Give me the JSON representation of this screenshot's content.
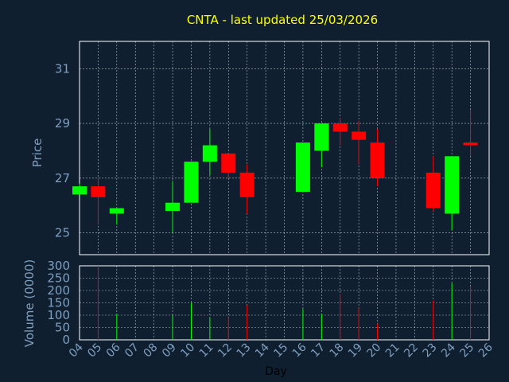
{
  "title": "CNTA - last updated 25/03/2026",
  "colors": {
    "background": "#0f1f30",
    "up": "#00ff00",
    "down": "#ff0000",
    "axis_text": "#7f9fbf",
    "grid": "#ffffff",
    "title": "#ffff00"
  },
  "chart_data": [
    {
      "type": "candlestick",
      "ylabel": "Price",
      "ylim": [
        24.2,
        32.0
      ],
      "yticks": [
        25,
        27,
        29,
        31
      ],
      "grid": true,
      "candles": [
        {
          "day": "04",
          "open": 26.4,
          "close": 26.7,
          "high": 26.8,
          "low": 26.4
        },
        {
          "day": "05",
          "open": 26.7,
          "close": 26.3,
          "high": 27.0,
          "low": 25.3
        },
        {
          "day": "06",
          "open": 25.7,
          "close": 25.9,
          "high": 25.9,
          "low": 25.3
        },
        {
          "day": "09",
          "open": 25.8,
          "close": 26.1,
          "high": 26.9,
          "low": 25.0
        },
        {
          "day": "10",
          "open": 26.1,
          "close": 27.6,
          "high": 27.6,
          "low": 26.1
        },
        {
          "day": "11",
          "open": 27.6,
          "close": 28.2,
          "high": 28.8,
          "low": 27.1
        },
        {
          "day": "12",
          "open": 27.9,
          "close": 27.2,
          "high": 27.9,
          "low": 27.0
        },
        {
          "day": "13",
          "open": 27.2,
          "close": 26.3,
          "high": 27.5,
          "low": 25.7
        },
        {
          "day": "16",
          "open": 26.5,
          "close": 28.3,
          "high": 28.3,
          "low": 26.5
        },
        {
          "day": "17",
          "open": 28.0,
          "close": 29.0,
          "high": 29.0,
          "low": 27.4
        },
        {
          "day": "18",
          "open": 29.0,
          "close": 28.7,
          "high": 29.2,
          "low": 28.2
        },
        {
          "day": "19",
          "open": 28.7,
          "close": 28.4,
          "high": 29.1,
          "low": 27.5
        },
        {
          "day": "20",
          "open": 28.3,
          "close": 27.0,
          "high": 28.8,
          "low": 26.7
        },
        {
          "day": "23",
          "open": 27.2,
          "close": 25.9,
          "high": 27.8,
          "low": 25.8
        },
        {
          "day": "24",
          "open": 25.7,
          "close": 27.8,
          "high": 27.8,
          "low": 25.1
        },
        {
          "day": "25",
          "open": 28.3,
          "close": 28.2,
          "high": 29.5,
          "low": 27.8
        }
      ]
    },
    {
      "type": "bar",
      "ylabel": "Volume (0000)",
      "xlabel": "Day",
      "ylim": [
        0,
        300
      ],
      "yticks": [
        0,
        50,
        100,
        150,
        200,
        250,
        300
      ],
      "grid": true,
      "x_ticks": [
        "04",
        "05",
        "06",
        "07",
        "08",
        "09",
        "10",
        "11",
        "12",
        "13",
        "14",
        "15",
        "16",
        "17",
        "18",
        "19",
        "20",
        "21",
        "22",
        "23",
        "24",
        "25",
        "26"
      ],
      "bars": [
        {
          "day": "05",
          "value": 300,
          "color": "down"
        },
        {
          "day": "06",
          "value": 105,
          "color": "up"
        },
        {
          "day": "09",
          "value": 100,
          "color": "up"
        },
        {
          "day": "10",
          "value": 150,
          "color": "up"
        },
        {
          "day": "11",
          "value": 90,
          "color": "up"
        },
        {
          "day": "12",
          "value": 90,
          "color": "down"
        },
        {
          "day": "13",
          "value": 140,
          "color": "down"
        },
        {
          "day": "16",
          "value": 125,
          "color": "up"
        },
        {
          "day": "17",
          "value": 105,
          "color": "up"
        },
        {
          "day": "18",
          "value": 185,
          "color": "down"
        },
        {
          "day": "19",
          "value": 130,
          "color": "down"
        },
        {
          "day": "20",
          "value": 65,
          "color": "down"
        },
        {
          "day": "23",
          "value": 160,
          "color": "down"
        },
        {
          "day": "24",
          "value": 230,
          "color": "up"
        },
        {
          "day": "25",
          "value": 215,
          "color": "down"
        }
      ]
    }
  ]
}
